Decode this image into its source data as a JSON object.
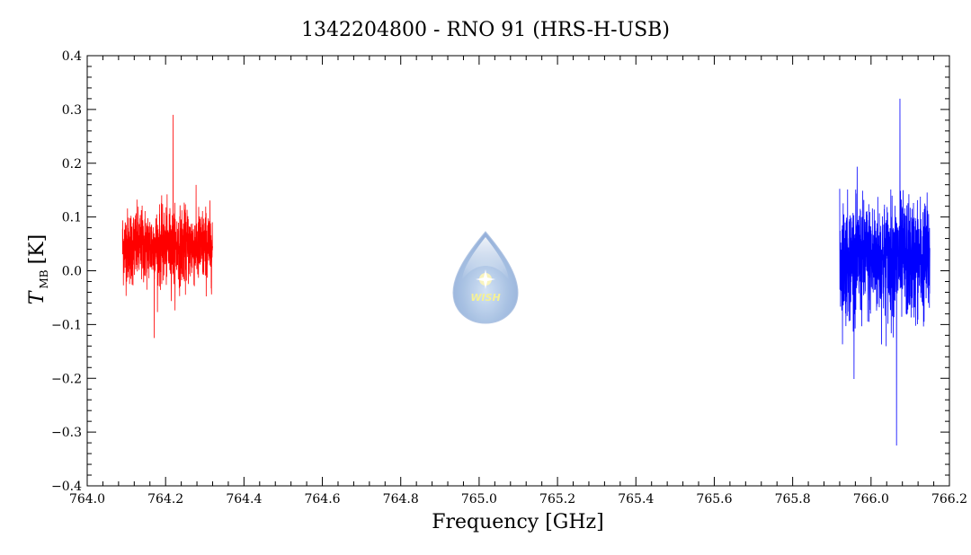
{
  "chart_data": {
    "type": "line",
    "title": "1342204800 - RNO 91 (HRS-H-USB)",
    "xlabel": "Frequency [GHz]",
    "ylabel": {
      "main": "T",
      "sub": "MB",
      "unit": "[K]"
    },
    "xlim": [
      764.0,
      766.2
    ],
    "ylim": [
      -0.4,
      0.4
    ],
    "x_ticks": [
      764.0,
      764.2,
      764.4,
      764.6,
      764.8,
      765.0,
      765.2,
      765.4,
      765.6,
      765.8,
      766.0,
      766.2
    ],
    "x_tick_labels": [
      "764.0",
      "764.2",
      "764.4",
      "764.6",
      "764.8",
      "765.0",
      "765.2",
      "765.4",
      "765.6",
      "765.8",
      "766.0",
      "766.2"
    ],
    "y_ticks": [
      -0.4,
      -0.3,
      -0.2,
      -0.1,
      0.0,
      0.1,
      0.2,
      0.3,
      0.4
    ],
    "y_tick_labels": [
      "−0.4",
      "−0.3",
      "−0.2",
      "−0.1",
      "0.0",
      "0.1",
      "0.2",
      "0.3",
      "0.4"
    ],
    "grid": false,
    "series": [
      {
        "color": "#ff0000",
        "x_range": [
          764.09,
          764.32
        ],
        "noise_center": 0.045,
        "noise_spread": 0.035,
        "max": 0.29,
        "min": -0.125
      },
      {
        "color": "#0000ff",
        "x_range": [
          765.92,
          766.15
        ],
        "noise_center": 0.02,
        "noise_spread": 0.055,
        "max": 0.32,
        "min": -0.325
      }
    ]
  },
  "logo": {
    "text": "WISH",
    "icon": "star-droplet-icon"
  }
}
